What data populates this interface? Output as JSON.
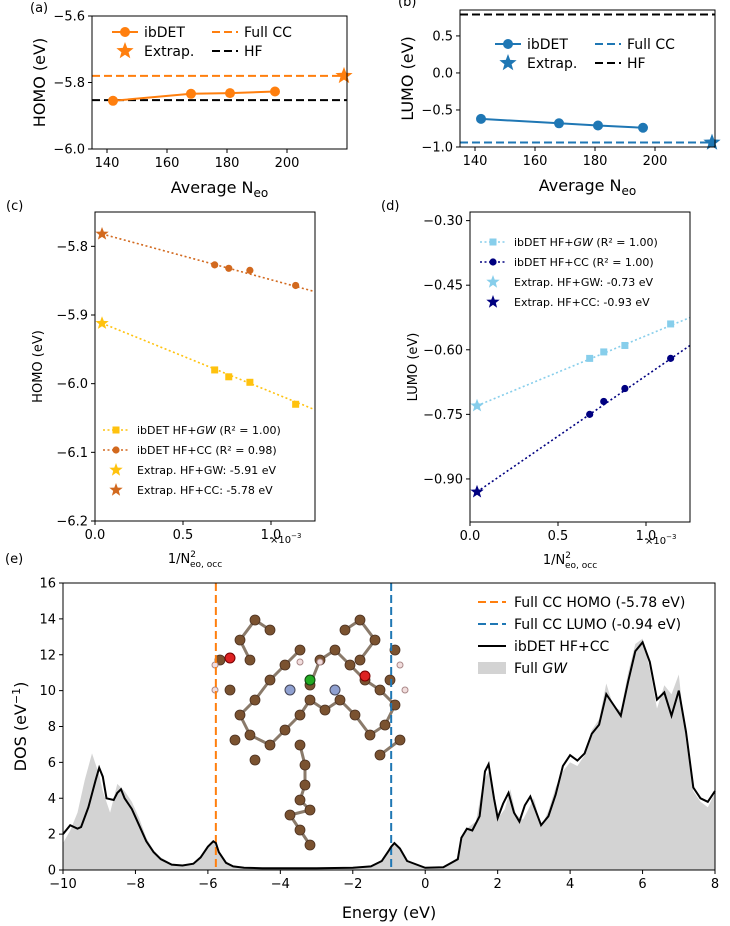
{
  "chart_data": [
    {
      "panel_label": "(a)",
      "type": "line",
      "xlabel": "Average N",
      "xlabel_sub": "eo",
      "ylabel": "HOMO (eV)",
      "xlim": [
        135,
        220
      ],
      "ylim": [
        -6.0,
        -5.6
      ],
      "xticks": [
        140,
        160,
        180,
        200
      ],
      "yticks": [
        -6.0,
        -5.8,
        -5.6
      ],
      "ytick_labels": [
        "−6.0",
        "−5.8",
        "−5.6"
      ],
      "legend": [
        "ibDET",
        "Extrap.",
        "Full CC",
        "HF"
      ],
      "series": [
        {
          "name": "ibDET",
          "color": "#ff7f0e",
          "x": [
            142,
            168,
            181,
            196
          ],
          "y": [
            -5.855,
            -5.834,
            -5.832,
            -5.827
          ]
        }
      ],
      "extrap": {
        "name": "Extrap.",
        "x": 219,
        "y": -5.78,
        "color": "#ff7f0e"
      },
      "hlines": [
        {
          "name": "Full CC",
          "y": -5.78,
          "color": "#ff7f0e",
          "dash": "dashed"
        },
        {
          "name": "HF",
          "y": -5.853,
          "color": "#000000",
          "dash": "dashed"
        }
      ]
    },
    {
      "panel_label": "(b)",
      "type": "line",
      "xlabel": "Average N",
      "xlabel_sub": "eo",
      "ylabel": "LUMO (eV)",
      "xlim": [
        135,
        220
      ],
      "ylim": [
        -1.0,
        0.85
      ],
      "xticks": [
        140,
        160,
        180,
        200
      ],
      "yticks": [
        -1.0,
        -0.5,
        0.0,
        0.5
      ],
      "ytick_labels": [
        "−1.0",
        "−0.5",
        "0.0",
        "0.5"
      ],
      "legend": [
        "ibDET",
        "Extrap.",
        "Full CC",
        "HF"
      ],
      "series": [
        {
          "name": "ibDET",
          "color": "#1f77b4",
          "x": [
            142,
            168,
            181,
            196
          ],
          "y": [
            -0.62,
            -0.68,
            -0.71,
            -0.74
          ]
        }
      ],
      "extrap": {
        "name": "Extrap.",
        "x": 219,
        "y": -0.94,
        "color": "#1f77b4"
      },
      "hlines": [
        {
          "name": "Full CC",
          "y": -0.94,
          "color": "#1f77b4",
          "dash": "dashed"
        },
        {
          "name": "HF",
          "y": 0.79,
          "color": "#000000",
          "dash": "dashed"
        }
      ]
    },
    {
      "panel_label": "(c)",
      "type": "scatter",
      "xlabel": "1/N",
      "xlabel_sub": "eo, occ",
      "xlabel_sup": "2",
      "x_multiplier": "×10",
      "x_multiplier_exp": "−3",
      "ylabel": "HOMO (eV)",
      "xlim": [
        0,
        1.25
      ],
      "ylim": [
        -6.2,
        -5.75
      ],
      "xticks": [
        0,
        0.5,
        1.0
      ],
      "xtick_labels": [
        "0.0",
        "0.5",
        "1.0"
      ],
      "yticks": [
        -6.2,
        -6.1,
        -6.0,
        -5.9,
        -5.8
      ],
      "ytick_labels": [
        "−6.2",
        "−6.1",
        "−6.0",
        "−5.9",
        "−5.8"
      ],
      "legend_texts": {
        "gw": "ibDET HF+",
        "gw_italic": "GW",
        "gw_r2": " (R² = 1.00)",
        "cc": "ibDET HF+CC (R² = 0.98)",
        "ex_gw": "Extrap. HF+GW: -5.91 eV",
        "ex_cc": "Extrap. HF+CC: -5.78 eV"
      },
      "series": [
        {
          "name": "ibDET HF+GW",
          "marker": "square",
          "color": "#ffc20e",
          "x": [
            0.68,
            0.76,
            0.88,
            1.14
          ],
          "y": [
            -5.98,
            -5.99,
            -5.998,
            -6.03
          ]
        },
        {
          "name": "ibDET HF+CC",
          "marker": "circle",
          "color": "#d2691e",
          "x": [
            0.68,
            0.76,
            0.88,
            1.14
          ],
          "y": [
            -5.827,
            -5.832,
            -5.835,
            -5.857
          ]
        }
      ],
      "fits": [
        {
          "color": "#ffc20e",
          "x": [
            0.04,
            1.25
          ],
          "y": [
            -5.912,
            -6.038
          ]
        },
        {
          "color": "#d2691e",
          "x": [
            0.04,
            1.25
          ],
          "y": [
            -5.782,
            -5.866
          ]
        }
      ],
      "extrap_points": [
        {
          "name": "Extrap. HF+GW",
          "x": 0.04,
          "y": -5.912,
          "color": "#ffc20e"
        },
        {
          "name": "Extrap. HF+CC",
          "x": 0.04,
          "y": -5.782,
          "color": "#d2691e"
        }
      ]
    },
    {
      "panel_label": "(d)",
      "type": "scatter",
      "xlabel": "1/N",
      "xlabel_sub": "eo, occ",
      "xlabel_sup": "2",
      "x_multiplier": "×10",
      "x_multiplier_exp": "−3",
      "ylabel": "LUMO (eV)",
      "xlim": [
        0,
        1.25
      ],
      "ylim": [
        -1.0,
        -0.28
      ],
      "xticks": [
        0,
        0.5,
        1.0
      ],
      "xtick_labels": [
        "0.0",
        "0.5",
        "1.0"
      ],
      "yticks": [
        -0.9,
        -0.75,
        -0.6,
        -0.45,
        -0.3
      ],
      "ytick_labels": [
        "−0.90",
        "−0.75",
        "−0.60",
        "−0.45",
        "−0.30"
      ],
      "legend_texts": {
        "gw": "ibDET HF+",
        "gw_italic": "GW",
        "gw_r2": " (R² = 1.00)",
        "cc": "ibDET HF+CC (R² = 1.00)",
        "ex_gw": "Extrap. HF+GW: -0.73 eV",
        "ex_cc": "Extrap. HF+CC: -0.93 eV"
      },
      "series": [
        {
          "name": "ibDET HF+GW",
          "marker": "square",
          "color": "#87ceeb",
          "x": [
            0.68,
            0.76,
            0.88,
            1.14
          ],
          "y": [
            -0.62,
            -0.605,
            -0.59,
            -0.54
          ]
        },
        {
          "name": "ibDET HF+CC",
          "marker": "circle",
          "color": "#000080",
          "x": [
            0.68,
            0.76,
            0.88,
            1.14
          ],
          "y": [
            -0.75,
            -0.72,
            -0.69,
            -0.62
          ]
        }
      ],
      "fits": [
        {
          "color": "#87ceeb",
          "x": [
            0.04,
            1.25
          ],
          "y": [
            -0.73,
            -0.525
          ]
        },
        {
          "color": "#000080",
          "x": [
            0.04,
            1.25
          ],
          "y": [
            -0.93,
            -0.59
          ]
        }
      ],
      "extrap_points": [
        {
          "name": "Extrap. HF+GW",
          "x": 0.04,
          "y": -0.73,
          "color": "#87ceeb"
        },
        {
          "name": "Extrap. HF+CC",
          "x": 0.04,
          "y": -0.93,
          "color": "#000080"
        }
      ]
    },
    {
      "panel_label": "(e)",
      "type": "area",
      "xlabel": "Energy (eV)",
      "ylabel": "DOS (eV",
      "ylabel_sup": "−1",
      "xlim": [
        -10,
        8
      ],
      "ylim": [
        0,
        16
      ],
      "xticks": [
        -10,
        -8,
        -6,
        -4,
        -2,
        0,
        2,
        4,
        6,
        8
      ],
      "xtick_labels": [
        "−10",
        "−8",
        "−6",
        "−4",
        "−2",
        "0",
        "2",
        "4",
        "6",
        "8"
      ],
      "yticks": [
        0,
        2,
        4,
        6,
        8,
        10,
        12,
        14,
        16
      ],
      "legend": [
        "Full CC HOMO (-5.78 eV)",
        "Full CC LUMO (-0.94 eV)",
        "ibDET HF+CC",
        "Full GW"
      ],
      "legend_gw_prefix": "Full ",
      "legend_gw_italic": "GW",
      "vlines": [
        {
          "name": "Full CC HOMO (-5.78 eV)",
          "x": -5.78,
          "color": "#ff7f0e"
        },
        {
          "name": "Full CC LUMO (-0.94 eV)",
          "x": -0.94,
          "color": "#1f77b4"
        }
      ],
      "ibdet_curve": {
        "name": "ibDET HF+CC",
        "x": [
          -10,
          -9.8,
          -9.6,
          -9.5,
          -9.3,
          -9.1,
          -9.0,
          -8.9,
          -8.8,
          -8.6,
          -8.5,
          -8.4,
          -8.3,
          -8.1,
          -7.9,
          -7.7,
          -7.5,
          -7.3,
          -7.0,
          -6.7,
          -6.4,
          -6.2,
          -6.0,
          -5.85,
          -5.78,
          -5.7,
          -5.5,
          -5.3,
          -5.0,
          -4.5,
          -4.0,
          -3.0,
          -2.0,
          -1.5,
          -1.2,
          -1.0,
          -0.94,
          -0.85,
          -0.7,
          -0.5,
          0.0,
          0.5,
          0.9,
          1.0,
          1.15,
          1.3,
          1.5,
          1.65,
          1.75,
          1.9,
          2.0,
          2.15,
          2.3,
          2.45,
          2.6,
          2.75,
          2.9,
          3.05,
          3.2,
          3.4,
          3.6,
          3.8,
          4.0,
          4.2,
          4.4,
          4.6,
          4.8,
          5.0,
          5.2,
          5.4,
          5.6,
          5.8,
          6.0,
          6.2,
          6.4,
          6.6,
          6.8,
          7.0,
          7.2,
          7.4,
          7.6,
          7.8,
          8.0
        ],
        "y": [
          2.0,
          2.5,
          2.3,
          2.4,
          3.5,
          5.0,
          5.7,
          5.2,
          4.0,
          3.9,
          4.3,
          4.5,
          4.0,
          3.4,
          2.5,
          1.6,
          1.0,
          0.6,
          0.3,
          0.25,
          0.35,
          0.7,
          1.3,
          1.6,
          1.5,
          1.0,
          0.4,
          0.2,
          0.12,
          0.1,
          0.1,
          0.1,
          0.12,
          0.2,
          0.5,
          1.1,
          1.3,
          1.5,
          1.2,
          0.5,
          0.12,
          0.15,
          0.6,
          1.8,
          2.3,
          2.2,
          3.0,
          5.5,
          5.9,
          4.0,
          2.9,
          3.7,
          4.3,
          3.2,
          2.7,
          3.6,
          4.1,
          3.3,
          2.5,
          3.0,
          4.2,
          5.8,
          6.4,
          6.1,
          6.5,
          7.6,
          8.1,
          9.8,
          9.2,
          8.6,
          10.5,
          12.2,
          12.7,
          11.6,
          9.5,
          9.9,
          8.6,
          10.0,
          7.7,
          4.6,
          4.0,
          3.8,
          4.4
        ]
      },
      "gw_curve": {
        "name": "Full GW",
        "x": [
          -10,
          -9.8,
          -9.6,
          -9.4,
          -9.2,
          -9.0,
          -8.9,
          -8.7,
          -8.5,
          -8.3,
          -8.1,
          -7.9,
          -7.7,
          -7.5,
          -7.3,
          -7.0,
          -6.7,
          -6.4,
          -6.2,
          -6.0,
          -5.85,
          -5.78,
          -5.7,
          -5.5,
          -5.3,
          -5.0,
          -4.0,
          -3.0,
          -2.0,
          -1.5,
          -1.2,
          -1.0,
          -0.94,
          -0.85,
          -0.7,
          -0.5,
          0.0,
          0.5,
          0.9,
          1.05,
          1.2,
          1.4,
          1.6,
          1.75,
          1.9,
          2.05,
          2.2,
          2.35,
          2.5,
          2.7,
          2.85,
          3.0,
          3.2,
          3.4,
          3.6,
          3.8,
          4.0,
          4.2,
          4.4,
          4.6,
          4.8,
          5.0,
          5.2,
          5.4,
          5.6,
          5.8,
          6.0,
          6.2,
          6.4,
          6.6,
          6.8,
          7.0,
          7.2,
          7.4,
          7.6,
          7.8,
          8.0
        ],
        "y": [
          1.5,
          2.2,
          3.2,
          5.0,
          6.5,
          5.3,
          4.4,
          3.2,
          4.8,
          4.4,
          3.8,
          2.9,
          1.8,
          1.1,
          0.7,
          0.35,
          0.25,
          0.35,
          0.65,
          1.25,
          1.6,
          1.55,
          1.05,
          0.45,
          0.2,
          0.1,
          0.06,
          0.06,
          0.1,
          0.2,
          0.5,
          1.1,
          1.3,
          1.55,
          1.2,
          0.5,
          0.1,
          0.15,
          0.7,
          2.0,
          2.4,
          2.7,
          4.9,
          5.5,
          3.9,
          3.0,
          3.4,
          4.5,
          3.1,
          2.8,
          3.4,
          4.0,
          2.4,
          3.3,
          4.6,
          5.5,
          6.0,
          5.8,
          6.4,
          7.8,
          8.4,
          10.4,
          9.1,
          8.9,
          11.0,
          12.6,
          12.9,
          11.2,
          9.0,
          10.3,
          9.8,
          10.9,
          7.2,
          4.4,
          3.8,
          3.5,
          4.3
        ]
      }
    }
  ]
}
